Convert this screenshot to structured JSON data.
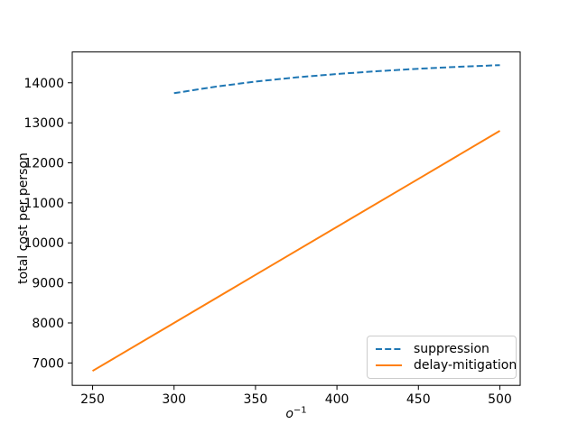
{
  "chart_data": {
    "type": "line",
    "title": "",
    "xlabel_base": "o",
    "xlabel_exponent": "−1",
    "ylabel": "total cost per person",
    "xlim": [
      237.5,
      512.5
    ],
    "ylim": [
      6440,
      14770
    ],
    "xticks": [
      250,
      300,
      350,
      400,
      450,
      500
    ],
    "yticks": [
      7000,
      8000,
      9000,
      10000,
      11000,
      12000,
      13000,
      14000
    ],
    "grid": false,
    "legend_position": "lower right",
    "series": [
      {
        "name": "suppression",
        "color": "#1f77b4",
        "line_style": "dashed",
        "x": [
          300,
          325,
          350,
          375,
          400,
          425,
          450,
          475,
          500
        ],
        "y": [
          13740,
          13900,
          14030,
          14135,
          14220,
          14290,
          14350,
          14400,
          14440
        ]
      },
      {
        "name": "delay-mitigation",
        "color": "#ff7f0e",
        "line_style": "solid",
        "x": [
          250,
          300,
          350,
          400,
          450,
          500
        ],
        "y": [
          6800,
          8000,
          9200,
          10400,
          11600,
          12800
        ]
      }
    ]
  }
}
